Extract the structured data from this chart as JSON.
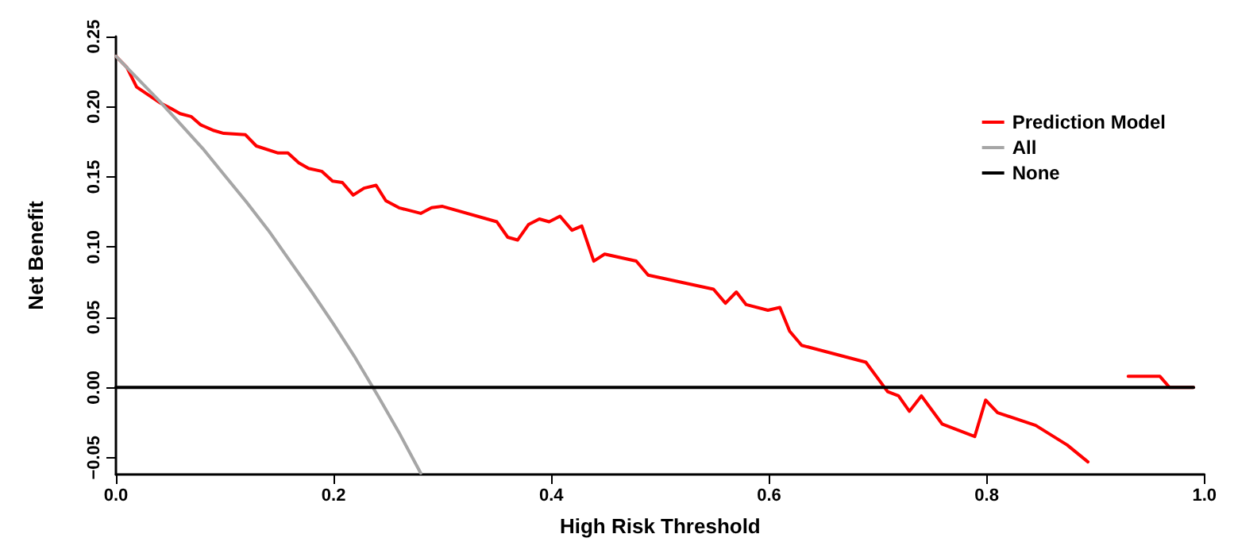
{
  "chart_data": {
    "type": "line",
    "xlabel": "High Risk Threshold",
    "ylabel": "Net Benefit",
    "xlim": [
      0,
      1
    ],
    "ylim": [
      -0.062,
      0.25
    ],
    "xticks": [
      {
        "value": 0,
        "label": "0.0"
      },
      {
        "value": 0.2,
        "label": "0.2"
      },
      {
        "value": 0.4,
        "label": "0.4"
      },
      {
        "value": 0.6,
        "label": "0.6"
      },
      {
        "value": 0.8,
        "label": "0.8"
      },
      {
        "value": 1,
        "label": "1.0"
      }
    ],
    "yticks": [
      {
        "value": -0.05,
        "label": "−0.05"
      },
      {
        "value": 0,
        "label": "0.00"
      },
      {
        "value": 0.05,
        "label": "0.05"
      },
      {
        "value": 0.1,
        "label": "0.10"
      },
      {
        "value": 0.15,
        "label": "0.15"
      },
      {
        "value": 0.2,
        "label": "0.20"
      },
      {
        "value": 0.25,
        "label": "0.25"
      }
    ],
    "grid": false,
    "legend": "top right",
    "marker": "none",
    "line_style": "solid",
    "series": [
      {
        "name": "Prediction Model",
        "color": "#ff0000",
        "x": [
          0,
          0.01,
          0.019,
          0.04,
          0.05,
          0.059,
          0.069,
          0.078,
          0.09,
          0.099,
          0.119,
          0.129,
          0.149,
          0.158,
          0.168,
          0.177,
          0.189,
          0.199,
          0.208,
          0.218,
          0.228,
          0.239,
          0.248,
          0.26,
          0.28,
          0.29,
          0.3,
          0.35,
          0.36,
          0.369,
          0.379,
          0.389,
          0.398,
          0.408,
          0.419,
          0.428,
          0.439,
          0.449,
          0.478,
          0.489,
          0.549,
          0.56,
          0.57,
          0.579,
          0.599,
          0.61,
          0.619,
          0.63,
          0.689,
          0.709,
          0.719,
          0.729,
          0.74,
          0.759,
          0.789,
          0.799,
          0.81,
          0.845,
          0.874,
          0.893,
          0.906,
          0.92,
          0.93,
          0.959,
          0.968,
          0.99
        ],
        "values": [
          0.236,
          0.228,
          0.214,
          0.203,
          0.199,
          0.195,
          0.193,
          0.187,
          0.183,
          0.181,
          0.18,
          0.172,
          0.167,
          0.167,
          0.16,
          0.156,
          0.154,
          0.147,
          0.146,
          0.137,
          0.142,
          0.144,
          0.133,
          0.128,
          0.124,
          0.128,
          0.129,
          0.118,
          0.107,
          0.105,
          0.116,
          0.12,
          0.118,
          0.122,
          0.112,
          0.115,
          0.09,
          0.095,
          0.09,
          0.08,
          0.07,
          0.06,
          0.068,
          0.059,
          0.055,
          0.057,
          0.04,
          0.03,
          0.018,
          -0.003,
          -0.006,
          -0.017,
          -0.006,
          -0.026,
          -0.035,
          -0.009,
          -0.018,
          -0.027,
          -0.041,
          -0.053,
          null,
          null,
          0.008,
          0.008,
          0,
          0
        ]
      },
      {
        "name": "All",
        "color": "#a6a6a6",
        "x": [
          0,
          0.02,
          0.04,
          0.06,
          0.08,
          0.1,
          0.12,
          0.14,
          0.16,
          0.18,
          0.2,
          0.22,
          0.24,
          0.26,
          0.28
        ],
        "values": [
          0.236,
          0.22,
          0.204,
          0.187,
          0.17,
          0.151,
          0.132,
          0.112,
          0.09,
          0.068,
          0.045,
          0.021,
          -0.005,
          -0.032,
          -0.061
        ]
      },
      {
        "name": "None",
        "color": "#000000",
        "x": [
          0,
          0.99
        ],
        "values": [
          0,
          0
        ]
      }
    ]
  }
}
